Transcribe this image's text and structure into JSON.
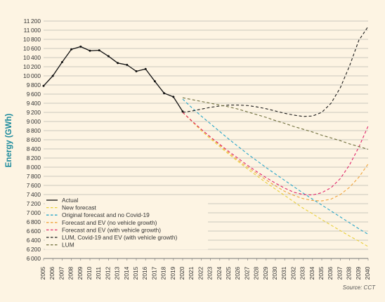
{
  "chart_data": {
    "type": "line",
    "ylabel": "Energy (GWh)",
    "xlabel": "",
    "source": "Source: CCT",
    "ylim": [
      6000,
      11200
    ],
    "ytick_step": 200,
    "x": [
      2005,
      2006,
      2007,
      2008,
      2009,
      2010,
      2011,
      2012,
      2013,
      2014,
      2015,
      2016,
      2017,
      2018,
      2019,
      2020,
      2021,
      2022,
      2023,
      2024,
      2025,
      2026,
      2027,
      2028,
      2029,
      2030,
      2031,
      2032,
      2033,
      2034,
      2035,
      2036,
      2037,
      2038,
      2039,
      2040
    ],
    "grid": "horizontal",
    "legend_position": "bottom-left",
    "series": [
      {
        "name": "Actual",
        "color": "#111111",
        "dash": "solid",
        "markers": true,
        "x": [
          2005,
          2006,
          2007,
          2008,
          2009,
          2010,
          2011,
          2012,
          2013,
          2014,
          2015,
          2016,
          2017,
          2018,
          2019,
          2020
        ],
        "values": [
          9780,
          10000,
          10300,
          10580,
          10640,
          10550,
          10560,
          10430,
          10280,
          10240,
          10100,
          10150,
          9880,
          9620,
          9540,
          9220
        ]
      },
      {
        "name": "New forecast",
        "color": "#e8cf3a",
        "dash": "dashed",
        "x": [
          2020,
          2021,
          2022,
          2023,
          2024,
          2025,
          2026,
          2027,
          2028,
          2029,
          2030,
          2031,
          2032,
          2033,
          2034,
          2035,
          2036,
          2037,
          2038,
          2039,
          2040
        ],
        "values": [
          9200,
          9000,
          8800,
          8620,
          8450,
          8280,
          8120,
          7960,
          7810,
          7660,
          7520,
          7380,
          7240,
          7100,
          6980,
          6850,
          6730,
          6610,
          6490,
          6380,
          6260
        ]
      },
      {
        "name": "Original forecast and no Covid-19",
        "color": "#29a6c9",
        "dash": "dashed",
        "x": [
          2020,
          2021,
          2022,
          2023,
          2024,
          2025,
          2026,
          2027,
          2028,
          2029,
          2030,
          2031,
          2032,
          2033,
          2034,
          2035,
          2036,
          2037,
          2038,
          2039,
          2040
        ],
        "values": [
          9490,
          9300,
          9120,
          8950,
          8780,
          8610,
          8450,
          8290,
          8140,
          7990,
          7850,
          7710,
          7570,
          7430,
          7300,
          7170,
          7040,
          6910,
          6780,
          6650,
          6530
        ]
      },
      {
        "name": "Forecast and EV (no vehicle growth)",
        "color": "#f0a33a",
        "dash": "dashed",
        "x": [
          2020,
          2021,
          2022,
          2023,
          2024,
          2025,
          2026,
          2027,
          2028,
          2029,
          2030,
          2031,
          2032,
          2033,
          2034,
          2035,
          2036,
          2037,
          2038,
          2039,
          2040
        ],
        "values": [
          9200,
          9010,
          8830,
          8650,
          8480,
          8310,
          8150,
          8000,
          7860,
          7720,
          7590,
          7470,
          7380,
          7310,
          7270,
          7260,
          7300,
          7400,
          7560,
          7780,
          8070
        ]
      },
      {
        "name": "Forecast and EV (with vehicle growth)",
        "color": "#e0246a",
        "dash": "dashed",
        "x": [
          2020,
          2021,
          2022,
          2023,
          2024,
          2025,
          2026,
          2027,
          2028,
          2029,
          2030,
          2031,
          2032,
          2033,
          2034,
          2035,
          2036,
          2037,
          2038,
          2039,
          2040
        ],
        "values": [
          9200,
          9010,
          8830,
          8660,
          8500,
          8340,
          8190,
          8040,
          7900,
          7770,
          7650,
          7540,
          7450,
          7400,
          7390,
          7440,
          7550,
          7750,
          8050,
          8440,
          8900
        ]
      },
      {
        "name": "LUM, Covid-19 and EV (with vehicle growth)",
        "color": "#1a1a1a",
        "dash": "dashed",
        "x": [
          2020,
          2021,
          2022,
          2023,
          2024,
          2025,
          2026,
          2027,
          2028,
          2029,
          2030,
          2031,
          2032,
          2033,
          2034,
          2035,
          2036,
          2037,
          2038,
          2039,
          2040
        ],
        "values": [
          9200,
          9230,
          9270,
          9310,
          9340,
          9360,
          9360,
          9350,
          9320,
          9280,
          9230,
          9180,
          9140,
          9110,
          9120,
          9200,
          9400,
          9740,
          10220,
          10780,
          11080
        ]
      },
      {
        "name": "LUM",
        "color": "#6e6e3c",
        "dash": "dashed",
        "x": [
          2020,
          2021,
          2022,
          2023,
          2024,
          2025,
          2026,
          2027,
          2028,
          2029,
          2030,
          2031,
          2032,
          2033,
          2034,
          2035,
          2036,
          2037,
          2038,
          2039,
          2040
        ],
        "values": [
          9520,
          9480,
          9440,
          9400,
          9360,
          9320,
          9270,
          9210,
          9150,
          9090,
          9020,
          8960,
          8890,
          8830,
          8770,
          8700,
          8640,
          8580,
          8510,
          8450,
          8390
        ]
      }
    ]
  }
}
